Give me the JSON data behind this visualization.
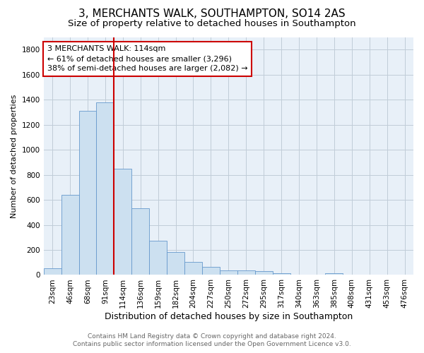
{
  "title": "3, MERCHANTS WALK, SOUTHAMPTON, SO14 2AS",
  "subtitle": "Size of property relative to detached houses in Southampton",
  "xlabel": "Distribution of detached houses by size in Southampton",
  "ylabel": "Number of detached properties",
  "categories": [
    "23sqm",
    "46sqm",
    "68sqm",
    "91sqm",
    "114sqm",
    "136sqm",
    "159sqm",
    "182sqm",
    "204sqm",
    "227sqm",
    "250sqm",
    "272sqm",
    "295sqm",
    "317sqm",
    "340sqm",
    "363sqm",
    "385sqm",
    "408sqm",
    "431sqm",
    "453sqm",
    "476sqm"
  ],
  "values": [
    55,
    640,
    1310,
    1380,
    850,
    530,
    275,
    185,
    105,
    65,
    38,
    38,
    28,
    15,
    5,
    5,
    15,
    0,
    0,
    0,
    0
  ],
  "bar_color": "#cce0f0",
  "bar_edge_color": "#6699cc",
  "vline_x_index": 4,
  "vline_color": "#cc0000",
  "annotation_text": "3 MERCHANTS WALK: 114sqm\n← 61% of detached houses are smaller (3,296)\n38% of semi-detached houses are larger (2,082) →",
  "annotation_box_color": "white",
  "annotation_box_edge": "#cc0000",
  "ylim": [
    0,
    1900
  ],
  "yticks": [
    0,
    200,
    400,
    600,
    800,
    1000,
    1200,
    1400,
    1600,
    1800
  ],
  "grid_color": "#c0ccd8",
  "background_color": "#e8f0f8",
  "footer_text": "Contains HM Land Registry data © Crown copyright and database right 2024.\nContains public sector information licensed under the Open Government Licence v3.0.",
  "title_fontsize": 11,
  "subtitle_fontsize": 9.5,
  "xlabel_fontsize": 9,
  "ylabel_fontsize": 8,
  "tick_fontsize": 7.5,
  "footer_fontsize": 6.5
}
